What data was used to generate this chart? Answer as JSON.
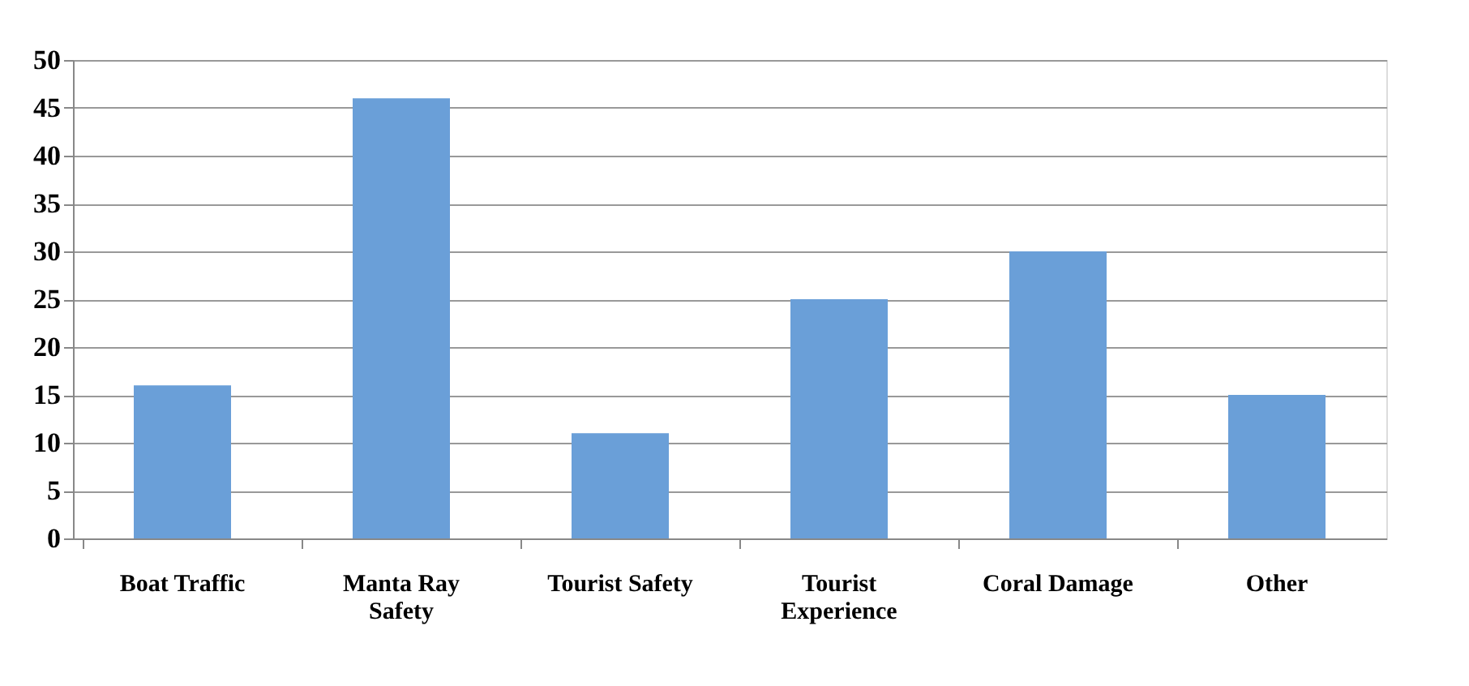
{
  "chart_data": {
    "type": "bar",
    "categories": [
      "Boat Traffic",
      "Manta Ray Safety",
      "Tourist Safety",
      "Tourist Experience",
      "Coral Damage",
      "Other"
    ],
    "values": [
      16,
      46,
      11,
      25,
      30,
      15
    ],
    "color": "#6a9fd8",
    "ylim": [
      0,
      50
    ],
    "yticks": [
      0,
      5,
      10,
      15,
      20,
      25,
      30,
      35,
      40,
      45,
      50
    ],
    "grid": "y"
  }
}
